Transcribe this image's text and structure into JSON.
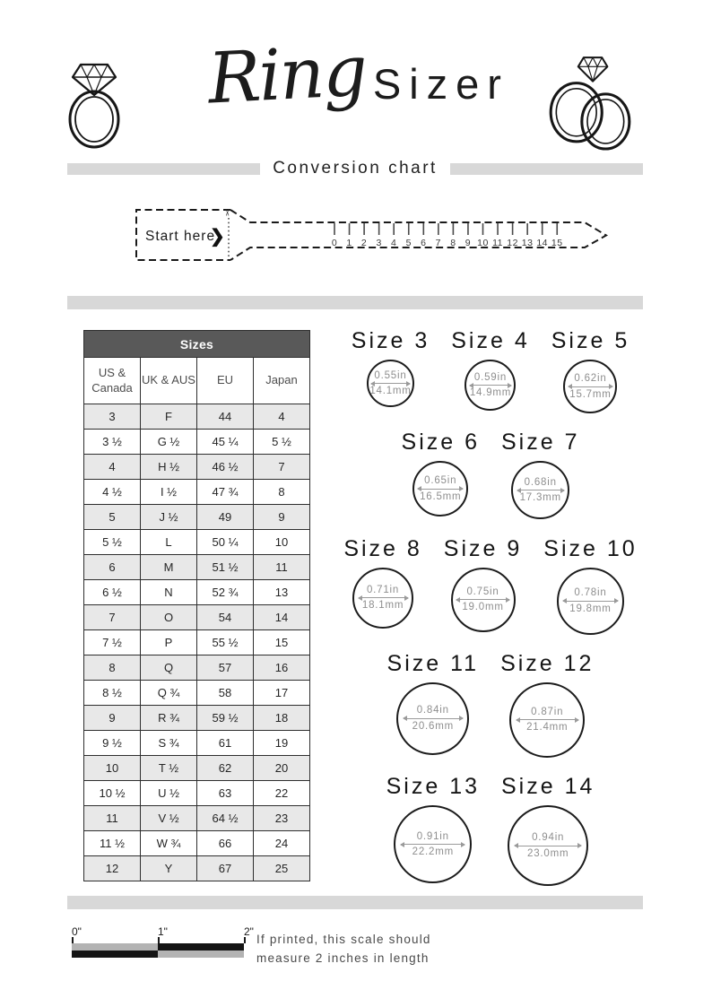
{
  "header": {
    "title_script": "Ring",
    "title_rest": "Sizer",
    "subtitle": "Conversion chart"
  },
  "sizer_strip": {
    "start_label": "Start here",
    "chevron": "❯",
    "scissors_icon": "✂",
    "ticks": [
      "0",
      "1",
      "2",
      "3",
      "4",
      "5",
      "6",
      "7",
      "8",
      "9",
      "10",
      "11",
      "12",
      "13",
      "14",
      "15"
    ]
  },
  "table": {
    "title": "Sizes",
    "headers": [
      "US & Canada",
      "UK & AUS",
      "EU",
      "Japan"
    ],
    "rows": [
      [
        "3",
        "F",
        "44",
        "4"
      ],
      [
        "3 ½",
        "G ½",
        "45 ¼",
        "5 ½"
      ],
      [
        "4",
        "H ½",
        "46 ½",
        "7"
      ],
      [
        "4 ½",
        "I ½",
        "47 ¾",
        "8"
      ],
      [
        "5",
        "J ½",
        "49",
        "9"
      ],
      [
        "5 ½",
        "L",
        "50 ¼",
        "10"
      ],
      [
        "6",
        "M",
        "51 ½",
        "11"
      ],
      [
        "6 ½",
        "N",
        "52 ¾",
        "13"
      ],
      [
        "7",
        "O",
        "54",
        "14"
      ],
      [
        "7 ½",
        "P",
        "55 ½",
        "15"
      ],
      [
        "8",
        "Q",
        "57",
        "16"
      ],
      [
        "8 ½",
        "Q ¾",
        "58",
        "17"
      ],
      [
        "9",
        "R ¾",
        "59 ½",
        "18"
      ],
      [
        "9 ½",
        "S ¾",
        "61",
        "19"
      ],
      [
        "10",
        "T ½",
        "62",
        "20"
      ],
      [
        "10 ½",
        "U ½",
        "63",
        "22"
      ],
      [
        "11",
        "V ½",
        "64 ½",
        "23"
      ],
      [
        "11 ½",
        "W ¾",
        "66",
        "24"
      ],
      [
        "12",
        "Y",
        "67",
        "25"
      ]
    ]
  },
  "circles": [
    {
      "label": "Size 3",
      "inches": "0.55in",
      "mm": "14.1mm",
      "inches_value": 0.55
    },
    {
      "label": "Size 4",
      "inches": "0.59in",
      "mm": "14.9mm",
      "inches_value": 0.59
    },
    {
      "label": "Size 5",
      "inches": "0.62in",
      "mm": "15.7mm",
      "inches_value": 0.62
    },
    {
      "label": "Size 6",
      "inches": "0.65in",
      "mm": "16.5mm",
      "inches_value": 0.65
    },
    {
      "label": "Size 7",
      "inches": "0.68in",
      "mm": "17.3mm",
      "inches_value": 0.68
    },
    {
      "label": "Size 8",
      "inches": "0.71in",
      "mm": "18.1mm",
      "inches_value": 0.71
    },
    {
      "label": "Size 9",
      "inches": "0.75in",
      "mm": "19.0mm",
      "inches_value": 0.75
    },
    {
      "label": "Size 10",
      "inches": "0.78in",
      "mm": "19.8mm",
      "inches_value": 0.78
    },
    {
      "label": "Size 11",
      "inches": "0.84in",
      "mm": "20.6mm",
      "inches_value": 0.84
    },
    {
      "label": "Size 12",
      "inches": "0.87in",
      "mm": "21.4mm",
      "inches_value": 0.87
    },
    {
      "label": "Size 13",
      "inches": "0.91in",
      "mm": "22.2mm",
      "inches_value": 0.91
    },
    {
      "label": "Size 14",
      "inches": "0.94in",
      "mm": "23.0mm",
      "inches_value": 0.94
    }
  ],
  "footer": {
    "scale_labels": [
      "0\"",
      "1\"",
      "2\""
    ],
    "note_lines": [
      "If printed, this scale should",
      "measure 2 inches in length"
    ]
  },
  "colors": {
    "ink": "#1c1c1c",
    "bar_gray": "#d8d8d8",
    "table_header_bg": "#595959",
    "row_shaded": "#e8e8e8",
    "dim_gray": "#8e8e8e",
    "scale_black": "#141414",
    "scale_gray": "#b3b3b3"
  }
}
